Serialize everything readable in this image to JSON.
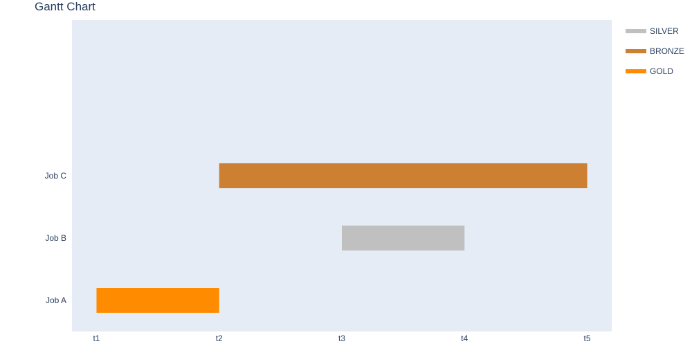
{
  "chart_data": {
    "type": "gantt",
    "title": "Gantt Chart",
    "xlabel": "",
    "ylabel": "",
    "x_categories": [
      "t1",
      "t2",
      "t3",
      "t4",
      "t5"
    ],
    "x_range": [
      0.8,
      5.2
    ],
    "y_categories": [
      "Job A",
      "Job B",
      "Job C"
    ],
    "y_range": [
      -0.5,
      4.5
    ],
    "tasks": [
      {
        "task": "Job A",
        "start": "t1",
        "finish": "t2",
        "resource": "GOLD"
      },
      {
        "task": "Job B",
        "start": "t3",
        "finish": "t4",
        "resource": "SILVER"
      },
      {
        "task": "Job C",
        "start": "t2",
        "finish": "t5",
        "resource": "BRONZE"
      }
    ],
    "legend": [
      {
        "name": "SILVER",
        "color": "#c0c0c0"
      },
      {
        "name": "BRONZE",
        "color": "#cd7f32"
      },
      {
        "name": "GOLD",
        "color": "#ff8c00"
      }
    ],
    "legend_position": "top-right",
    "plot_background": "#e5ecf6",
    "grid": false
  }
}
